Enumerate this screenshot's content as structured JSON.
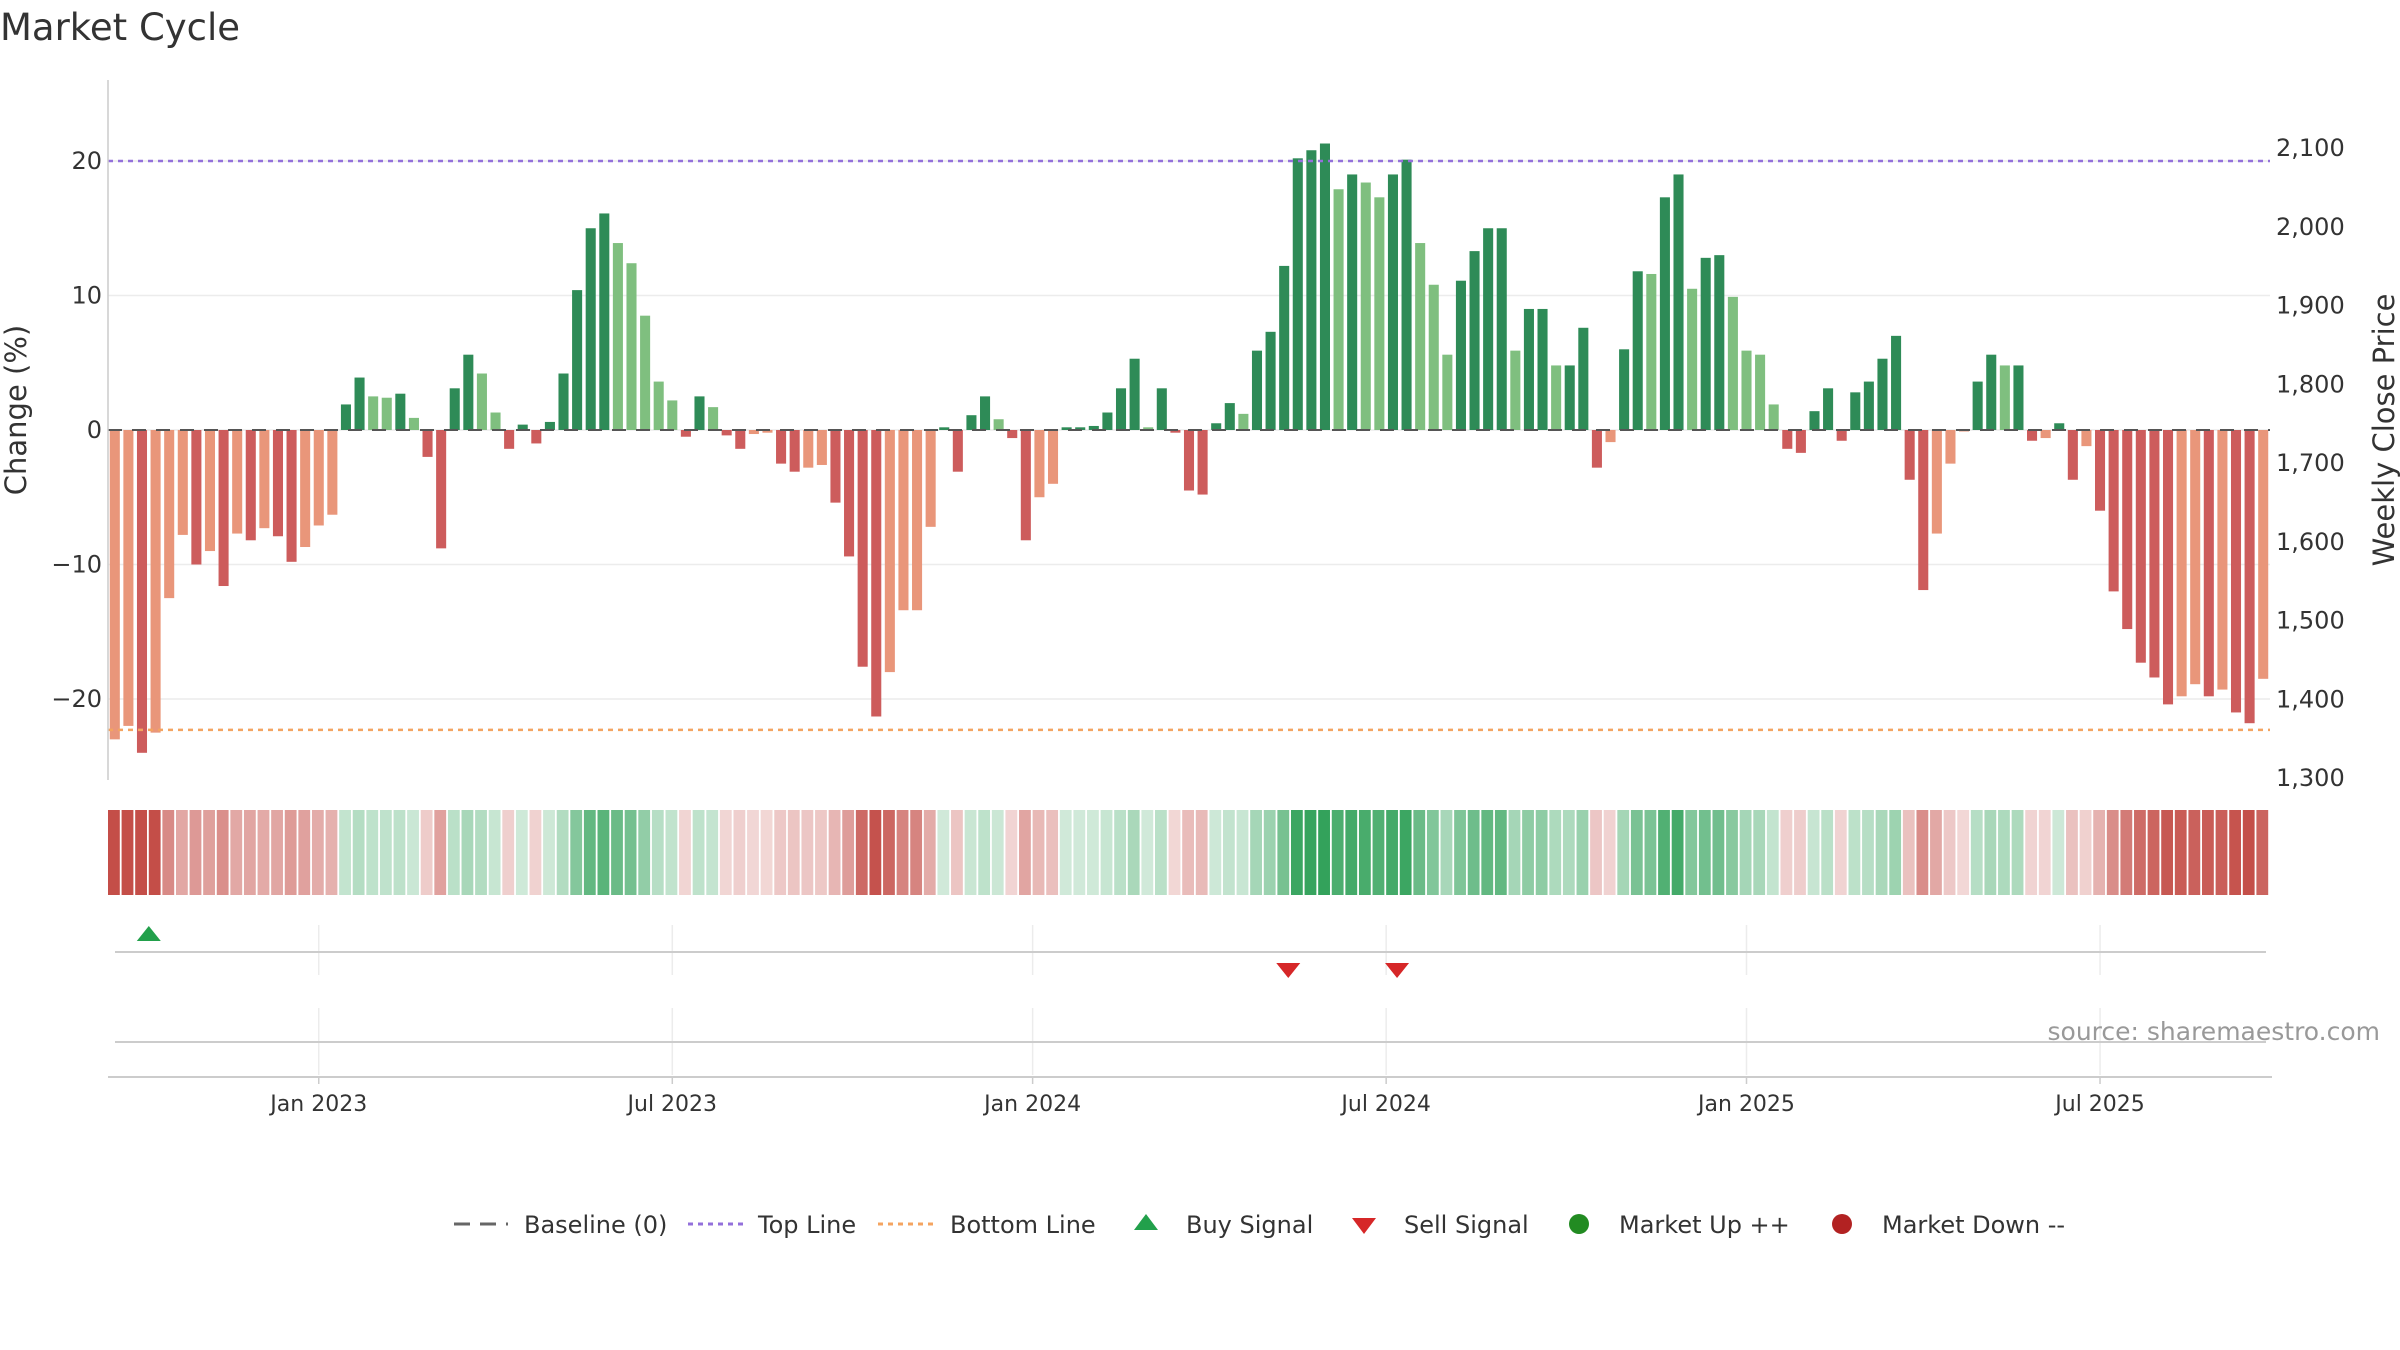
{
  "chart_data": {
    "type": "bar",
    "title": "Market Cycle",
    "ylabel": "Change (%)",
    "y2label": "Weekly Close Price",
    "ylim": [
      -26,
      26
    ],
    "yticks": [
      -20,
      -10,
      0,
      10,
      20
    ],
    "yticklabels": [
      "−20",
      "−10",
      "0",
      "10",
      "20"
    ],
    "y2lim": [
      1300,
      2100
    ],
    "y2ticks": [
      1300,
      1400,
      1500,
      1600,
      1700,
      1800,
      1900,
      2000,
      2100
    ],
    "y2ticklabels": [
      "1,300",
      "1,400",
      "1,500",
      "1,600",
      "1,700",
      "1,800",
      "1,900",
      "2,000",
      "2,100"
    ],
    "top_line": 20,
    "bottom_line": -22.3,
    "baseline": 0,
    "x_date_labels": [
      "Jan 2023",
      "Jul 2023",
      "Jan 2024",
      "Jul 2024",
      "Jan 2025",
      "Jul 2025"
    ],
    "x_label_week_index": [
      15,
      41,
      67.5,
      93.5,
      120,
      146
    ],
    "values": [
      -23,
      -22,
      -24,
      -22.5,
      -12.5,
      -7.8,
      -10,
      -9,
      -11.6,
      -7.7,
      -8.2,
      -7.3,
      -7.9,
      -9.8,
      -8.7,
      -7.1,
      -6.3,
      1.9,
      3.9,
      2.5,
      2.4,
      2.7,
      0.9,
      -2,
      -8.8,
      3.1,
      5.6,
      4.2,
      1.3,
      -1.4,
      0.4,
      -1,
      0.6,
      4.2,
      10.4,
      15,
      16.1,
      13.9,
      12.4,
      8.5,
      3.6,
      2.2,
      -0.5,
      2.5,
      1.7,
      -0.4,
      -1.4,
      -0.3,
      -0.2,
      -2.5,
      -3.1,
      -2.8,
      -2.6,
      -5.4,
      -9.4,
      -17.6,
      -21.3,
      -18,
      -13.4,
      -13.4,
      -7.2,
      0.2,
      -3.1,
      1.1,
      2.5,
      0.8,
      -0.6,
      -8.2,
      -5,
      -4,
      0.2,
      0.2,
      0.3,
      1.3,
      3.1,
      5.3,
      0.2,
      3.1,
      -0.2,
      -4.5,
      -4.8,
      0.5,
      2,
      1.2,
      5.9,
      7.3,
      12.2,
      20.2,
      20.8,
      21.3,
      17.9,
      19,
      18.4,
      17.3,
      19,
      20.1,
      13.9,
      10.8,
      5.6,
      11.1,
      13.3,
      15,
      15,
      5.9,
      9,
      9,
      4.8,
      4.8,
      7.6,
      -2.8,
      -0.9,
      6,
      11.8,
      11.6,
      17.3,
      19,
      10.5,
      12.8,
      13,
      9.9,
      5.9,
      5.6,
      1.9,
      -1.4,
      -1.7,
      1.4,
      3.1,
      -0.8,
      2.8,
      3.6,
      5.3,
      7,
      -3.7,
      -11.9,
      -7.7,
      -2.5,
      -0.1,
      3.6,
      5.6,
      4.8,
      4.8,
      -0.8,
      -0.6,
      0.5,
      -3.7,
      -1.2,
      -6,
      -12,
      -14.8,
      -17.3,
      -18.4,
      -20.4,
      -19.8,
      -18.9,
      -19.8,
      -19.3,
      -21,
      -21.8,
      -18.5
    ],
    "series_colors": {
      "up_strong": "#2e8b57",
      "up_weak": "#7fbf7f",
      "down_strong": "#cd5c5c",
      "down_weak": "#e9967a",
      "top_line": "#9370db",
      "bottom_line": "#f4a460",
      "buy": "#22a04b",
      "sell": "#d62728",
      "market_up": "#228b22",
      "market_down": "#b22222"
    },
    "signals": [
      {
        "type": "buy",
        "week": 2.5
      },
      {
        "type": "sell",
        "week": 86.3
      },
      {
        "type": "sell",
        "week": 94.3
      }
    ]
  },
  "legend": {
    "baseline": "Baseline (0)",
    "top_line": "Top Line",
    "bottom_line": "Bottom Line",
    "buy": "Buy Signal",
    "sell": "Sell Signal",
    "market_up": "Market Up ++",
    "market_down": "Market Down --"
  },
  "source": "source: sharemaestro.com"
}
